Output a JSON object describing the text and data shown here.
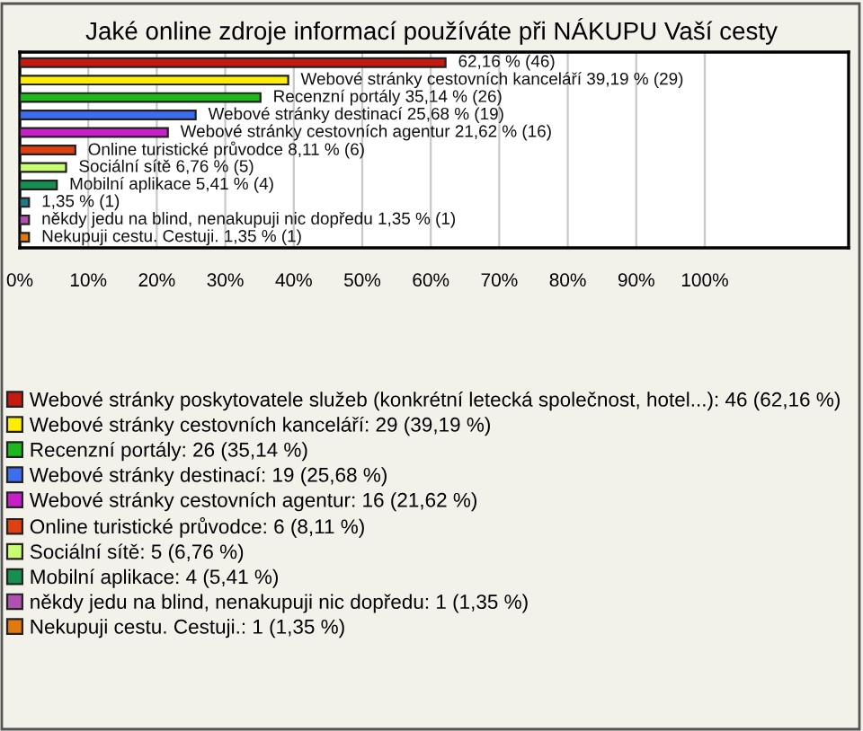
{
  "chart_data": {
    "type": "bar",
    "orientation": "horizontal",
    "title": "Jaké online zdroje informací používáte při NÁKUPU Vaší cesty",
    "categories": [
      null,
      null,
      null,
      null,
      null,
      null,
      null,
      null,
      null,
      null,
      null
    ],
    "series": [
      {
        "name": "Webové stránky poskytovatele služeb (konkrétní letecká společnost, hotel...): 46 (62,16 %)",
        "color": "#c41a10",
        "values": [
          62.16,
          null,
          null,
          null,
          null,
          null,
          null,
          null,
          null,
          null,
          null
        ],
        "value_labels": [
          "62,16 % (46)",
          null,
          null,
          null,
          null,
          null,
          null,
          null,
          null,
          null,
          null
        ]
      },
      {
        "name": "Webové stránky cestovních kanceláří: 29 (39,19 %)",
        "color": "#ffee00",
        "values": [
          null,
          39.19,
          null,
          null,
          null,
          null,
          null,
          null,
          null,
          null,
          null
        ],
        "value_labels": [
          null,
          "Webové stránky cestovních kanceláří 39,19 % (29)",
          null,
          null,
          null,
          null,
          null,
          null,
          null,
          null,
          null
        ]
      },
      {
        "name": "Recenzní portály: 26 (35,14 %)",
        "color": "#1cb81c",
        "values": [
          null,
          null,
          35.14,
          null,
          null,
          null,
          null,
          null,
          null,
          null,
          null
        ],
        "value_labels": [
          null,
          null,
          "Recenzní portály 35,14 % (26)",
          null,
          null,
          null,
          null,
          null,
          null,
          null,
          null
        ]
      },
      {
        "name": "Webové stránky destinací: 19 (25,68 %)",
        "color": "#3d6ef0",
        "values": [
          null,
          null,
          null,
          25.68,
          null,
          null,
          null,
          null,
          null,
          null,
          null
        ],
        "value_labels": [
          null,
          null,
          null,
          "Webové stránky destinací 25,68 % (19)",
          null,
          null,
          null,
          null,
          null,
          null,
          null
        ]
      },
      {
        "name": "Webové stránky cestovních agentur: 16 (21,62 %)",
        "color": "#c81ec8",
        "values": [
          null,
          null,
          null,
          null,
          21.62,
          null,
          null,
          null,
          null,
          null,
          null
        ],
        "value_labels": [
          null,
          null,
          null,
          null,
          "Webové stránky cestovních agentur 21,62 % (16)",
          null,
          null,
          null,
          null,
          null,
          null
        ]
      },
      {
        "name": "Online turistické průvodce: 6 (8,11 %)",
        "color": "#e04010",
        "values": [
          null,
          null,
          null,
          null,
          null,
          8.11,
          null,
          null,
          null,
          null,
          null
        ],
        "value_labels": [
          null,
          null,
          null,
          null,
          null,
          "Online turistické průvodce 8,11 % (6)",
          null,
          null,
          null,
          null,
          null
        ]
      },
      {
        "name": "Sociální sítě: 5 (6,76 %)",
        "color": "#c8ff70",
        "values": [
          null,
          null,
          null,
          null,
          null,
          null,
          6.76,
          null,
          null,
          null,
          null
        ],
        "value_labels": [
          null,
          null,
          null,
          null,
          null,
          null,
          "Sociální sítě 6,76 % (5)",
          null,
          null,
          null,
          null
        ]
      },
      {
        "name": "Mobilní aplikace: 4 (5,41 %)",
        "color": "#169050",
        "values": [
          null,
          null,
          null,
          null,
          null,
          null,
          null,
          5.41,
          null,
          null,
          null
        ],
        "value_labels": [
          null,
          null,
          null,
          null,
          null,
          null,
          null,
          "Mobilní aplikace 5,41 % (4)",
          null,
          null,
          null
        ]
      },
      {
        "color": "#207888",
        "values": [
          null,
          null,
          null,
          null,
          null,
          null,
          null,
          null,
          1.35,
          null,
          null
        ],
        "value_labels": [
          null,
          null,
          null,
          null,
          null,
          null,
          null,
          null,
          "1,35 % (1)",
          null,
          null
        ]
      },
      {
        "name": "někdy jedu na blind, nenakupuji nic dopředu: 1 (1,35 %)",
        "color": "#b050b0",
        "values": [
          null,
          null,
          null,
          null,
          null,
          null,
          null,
          null,
          null,
          1.35,
          null
        ],
        "value_labels": [
          null,
          null,
          null,
          null,
          null,
          null,
          null,
          null,
          null,
          "někdy jedu na blind, nenakupuji nic dopředu 1,35 % (1)",
          null
        ]
      },
      {
        "name": "Nekupuji cestu. Cestuji.: 1 (1,35 %)",
        "color": "#e07a10",
        "values": [
          null,
          null,
          null,
          null,
          null,
          null,
          null,
          null,
          null,
          null,
          1.35
        ],
        "value_labels": [
          null,
          null,
          null,
          null,
          null,
          null,
          null,
          null,
          null,
          null,
          "Nekupuji cestu. Cestuji. 1,35 % (1)"
        ]
      }
    ],
    "xlim": [
      0,
      121
    ],
    "xticks": [
      {
        "value": 0,
        "label": "0%"
      },
      {
        "value": 10,
        "label": "10%"
      },
      {
        "value": 20,
        "label": "20%"
      },
      {
        "value": 30,
        "label": "30%"
      },
      {
        "value": 40,
        "label": "40%"
      },
      {
        "value": 50,
        "label": "50%"
      },
      {
        "value": 60,
        "label": "60%"
      },
      {
        "value": 70,
        "label": "70%"
      },
      {
        "value": 80,
        "label": "80%"
      },
      {
        "value": 90,
        "label": "90%"
      },
      {
        "value": 100,
        "label": "100%"
      }
    ],
    "grid": "x",
    "legend": "bottom"
  }
}
